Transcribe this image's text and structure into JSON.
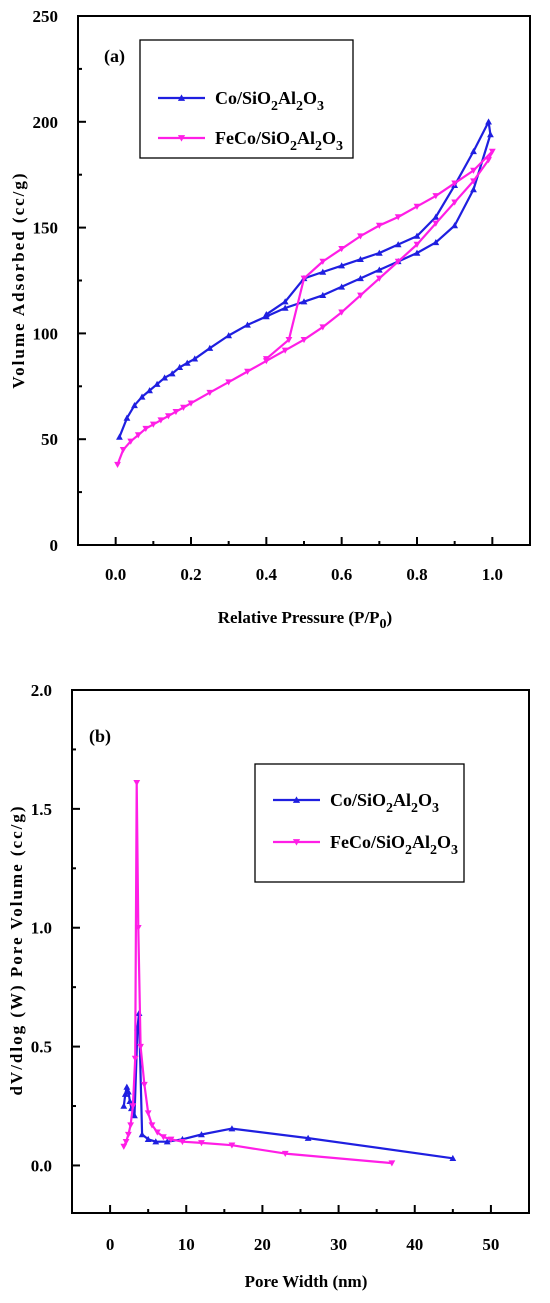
{
  "chart_data": [
    {
      "type": "line",
      "panel": "(a)",
      "xlabel": "Relative Pressure (P/P0)",
      "ylabel": "Volume Adsorbed (cc/g)",
      "xlim": [
        -0.1,
        1.1
      ],
      "ylim": [
        0,
        250
      ],
      "xticks": [
        "0.0",
        "0.2",
        "0.4",
        "0.6",
        "0.8",
        "1.0"
      ],
      "yticks": [
        "0",
        "50",
        "100",
        "150",
        "200",
        "250"
      ],
      "legend": "top-left",
      "series": [
        {
          "name": "Co/SiO2Al2O3",
          "color": "#1f1fe0",
          "marker": "triangle-up",
          "x": [
            0.01,
            0.03,
            0.05,
            0.07,
            0.09,
            0.11,
            0.13,
            0.15,
            0.17,
            0.19,
            0.21,
            0.25,
            0.3,
            0.35,
            0.4,
            0.45,
            0.5,
            0.55,
            0.6,
            0.65,
            0.7,
            0.75,
            0.8,
            0.85,
            0.9,
            0.95,
            0.995,
            0.99,
            0.95,
            0.9,
            0.85,
            0.8,
            0.75,
            0.7,
            0.65,
            0.6,
            0.55,
            0.5,
            0.45,
            0.4
          ],
          "y": [
            51,
            60,
            66,
            70,
            73,
            76,
            79,
            81,
            84,
            86,
            88,
            93,
            99,
            104,
            108,
            112,
            115,
            118,
            122,
            126,
            130,
            134,
            138,
            143,
            151,
            168,
            194,
            200,
            186,
            170,
            155,
            146,
            142,
            138,
            135,
            132,
            129,
            126,
            115,
            109
          ]
        },
        {
          "name": "FeCo/SiO2Al2O3",
          "color": "#ff1ee6",
          "marker": "triangle-down",
          "x": [
            0.005,
            0.02,
            0.04,
            0.06,
            0.08,
            0.1,
            0.12,
            0.14,
            0.16,
            0.18,
            0.2,
            0.25,
            0.3,
            0.35,
            0.4,
            0.45,
            0.5,
            0.55,
            0.6,
            0.65,
            0.7,
            0.75,
            0.8,
            0.85,
            0.9,
            0.95,
            0.99,
            1.0,
            0.95,
            0.9,
            0.85,
            0.8,
            0.75,
            0.7,
            0.65,
            0.6,
            0.55,
            0.5,
            0.46,
            0.4
          ],
          "y": [
            38,
            45,
            49,
            52,
            55,
            57,
            59,
            61,
            63,
            65,
            67,
            72,
            77,
            82,
            87,
            92,
            97,
            103,
            110,
            118,
            126,
            134,
            142,
            152,
            162,
            172,
            182,
            186,
            177,
            171,
            165,
            160,
            155,
            151,
            146,
            140,
            134,
            126,
            97,
            88
          ]
        }
      ]
    },
    {
      "type": "line",
      "panel": "(b)",
      "xlabel": "Pore Width (nm)",
      "ylabel": "dV/dlog(W) Pore Volume (cc/g)",
      "xlim": [
        -5,
        55
      ],
      "ylim": [
        -0.2,
        2.0
      ],
      "xticks": [
        "0",
        "10",
        "20",
        "30",
        "40",
        "50"
      ],
      "yticks": [
        "0.0",
        "0.5",
        "1.0",
        "1.5",
        "2.0"
      ],
      "legend": "top-right",
      "series": [
        {
          "name": "Co/SiO2Al2O3",
          "color": "#1f1fe0",
          "marker": "triangle-up",
          "x": [
            1.8,
            2.0,
            2.2,
            2.4,
            2.6,
            2.8,
            3.2,
            3.6,
            3.8,
            4.2,
            5.0,
            6.0,
            7.5,
            9.5,
            12.0,
            16.0,
            26.0,
            45.0
          ],
          "y": [
            0.25,
            0.3,
            0.33,
            0.31,
            0.27,
            0.24,
            0.21,
            0.58,
            0.64,
            0.13,
            0.11,
            0.1,
            0.1,
            0.11,
            0.13,
            0.155,
            0.115,
            0.03
          ]
        },
        {
          "name": "FeCo/SiO2Al2O3",
          "color": "#ff1ee6",
          "marker": "triangle-down",
          "x": [
            1.8,
            2.1,
            2.4,
            2.7,
            3.0,
            3.3,
            3.5,
            3.7,
            4.0,
            4.5,
            5.0,
            5.5,
            6.2,
            7.0,
            8.0,
            9.5,
            12.0,
            16.0,
            23.0,
            37.0
          ],
          "y": [
            0.08,
            0.1,
            0.13,
            0.17,
            0.25,
            0.45,
            1.61,
            1.0,
            0.5,
            0.34,
            0.22,
            0.17,
            0.14,
            0.12,
            0.11,
            0.1,
            0.095,
            0.085,
            0.05,
            0.01
          ]
        }
      ]
    }
  ]
}
